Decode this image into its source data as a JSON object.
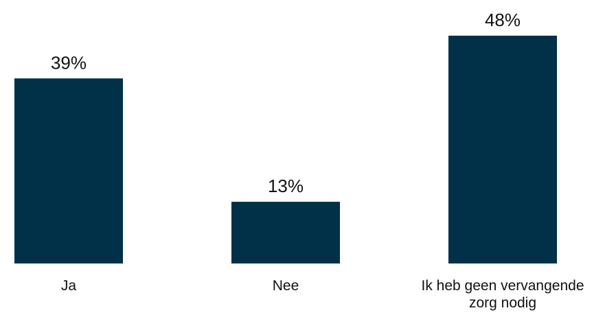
{
  "chart_data": {
    "type": "bar",
    "categories": [
      "Ja",
      "Nee",
      "Ik heb geen vervangende zorg nodig"
    ],
    "category_label_lines": [
      [
        "Ja"
      ],
      [
        "Nee"
      ],
      [
        "Ik heb geen vervangende",
        "zorg nodig"
      ]
    ],
    "values": [
      39,
      13,
      48
    ],
    "data_labels": [
      "39%",
      "13%",
      "48%"
    ],
    "value_unit": "%",
    "title": "",
    "xlabel": "",
    "ylabel": "",
    "ylim": [
      0,
      48
    ],
    "grid": false,
    "legend": "none",
    "bar_color": "#003149"
  }
}
